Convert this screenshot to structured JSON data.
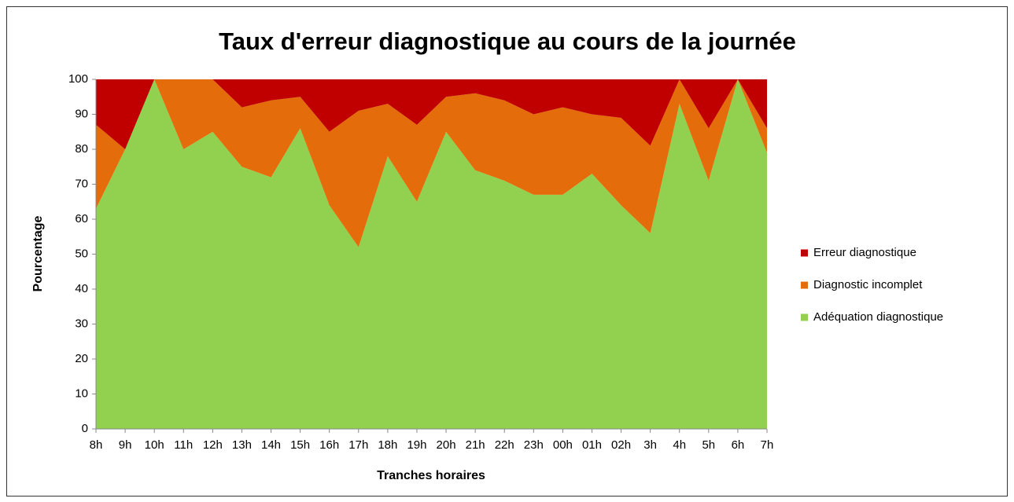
{
  "chart_data": {
    "type": "stacked_area",
    "title": "Taux d'erreur diagnostique au cours de la journée",
    "x_label": "Tranches horaires",
    "y_label": "Pourcentage",
    "categories": [
      "8h",
      "9h",
      "10h",
      "11h",
      "12h",
      "13h",
      "14h",
      "15h",
      "16h",
      "17h",
      "18h",
      "19h",
      "20h",
      "21h",
      "22h",
      "23h",
      "00h",
      "01h",
      "02h",
      "3h",
      "4h",
      "5h",
      "6h",
      "7h"
    ],
    "series": [
      {
        "name": "Adéquation diagnostique",
        "color": "#92d050",
        "values": [
          63,
          80,
          100,
          80,
          85,
          75,
          72,
          86,
          64,
          52,
          78,
          65,
          85,
          74,
          71,
          67,
          67,
          73,
          64,
          56,
          93,
          71,
          100,
          79
        ]
      },
      {
        "name": "Diagnostic incomplet",
        "color": "#e46c0a",
        "values": [
          24,
          0,
          0,
          20,
          15,
          17,
          22,
          9,
          21,
          39,
          15,
          22,
          10,
          22,
          23,
          23,
          25,
          17,
          25,
          25,
          7,
          15,
          0,
          7
        ]
      },
      {
        "name": "Erreur diagnostique",
        "color": "#c00000",
        "values": [
          13,
          20,
          0,
          0,
          0,
          8,
          6,
          5,
          15,
          9,
          7,
          13,
          5,
          4,
          6,
          10,
          8,
          10,
          11,
          19,
          0,
          14,
          0,
          14
        ]
      }
    ],
    "ylim": [
      0,
      100
    ],
    "yticks": [
      0,
      10,
      20,
      30,
      40,
      50,
      60,
      70,
      80,
      90,
      100
    ],
    "legend": "right"
  }
}
